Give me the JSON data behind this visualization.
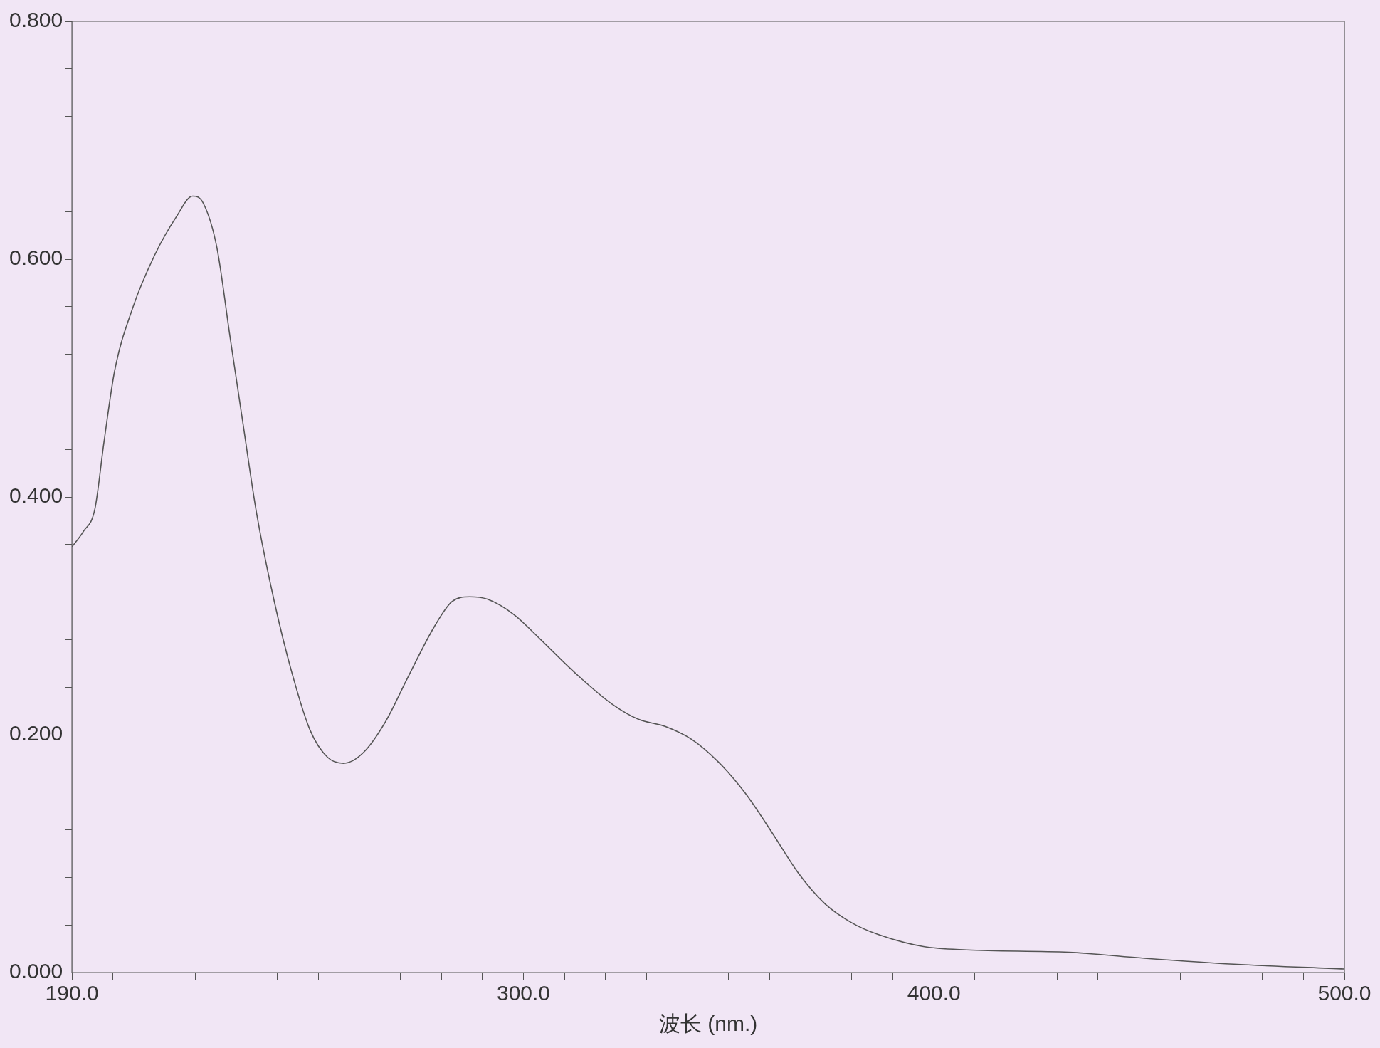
{
  "chart_data": {
    "type": "line",
    "xlabel": "波长 (nm.)",
    "x": [
      190,
      192.8,
      195.6,
      197.8,
      200.4,
      204.7,
      210.1,
      215.5,
      219.4,
      222,
      225.3,
      228.5,
      231.7,
      235,
      239.3,
      243.6,
      248,
      252.3,
      256.2,
      261,
      266.4,
      271.8,
      278.3,
      282.6,
      286.9,
      291.2,
      297.7,
      304.2,
      312.9,
      321.5,
      328,
      334.5,
      341,
      347.5,
      354,
      360.5,
      366.9,
      373.4,
      379.9,
      386.4,
      397.2,
      408,
      432.9,
      451.3,
      473,
      500
    ],
    "series": [
      {
        "color": "#555555",
        "values": [
          0.358,
          0.371,
          0.39,
          0.446,
          0.506,
          0.558,
          0.603,
          0.636,
          0.653,
          0.647,
          0.61,
          0.535,
          0.461,
          0.386,
          0.312,
          0.252,
          0.204,
          0.181,
          0.176,
          0.185,
          0.211,
          0.248,
          0.291,
          0.312,
          0.316,
          0.314,
          0.301,
          0.28,
          0.251,
          0.226,
          0.213,
          0.207,
          0.196,
          0.177,
          0.151,
          0.118,
          0.084,
          0.058,
          0.042,
          0.032,
          0.022,
          0.019,
          0.017,
          0.012,
          0.007,
          0.003
        ]
      }
    ],
    "xlim": [
      190,
      500
    ],
    "xticks": [
      {
        "value": 190,
        "label": "190.0"
      },
      {
        "value": 200,
        "label": null
      },
      {
        "value": 210,
        "label": null
      },
      {
        "value": 220,
        "label": null
      },
      {
        "value": 230,
        "label": null
      },
      {
        "value": 240,
        "label": null
      },
      {
        "value": 250,
        "label": null
      },
      {
        "value": 260,
        "label": null
      },
      {
        "value": 270,
        "label": null
      },
      {
        "value": 280,
        "label": null
      },
      {
        "value": 290,
        "label": null
      },
      {
        "value": 300,
        "label": "300.0"
      },
      {
        "value": 310,
        "label": null
      },
      {
        "value": 320,
        "label": null
      },
      {
        "value": 330,
        "label": null
      },
      {
        "value": 340,
        "label": null
      },
      {
        "value": 350,
        "label": null
      },
      {
        "value": 360,
        "label": null
      },
      {
        "value": 370,
        "label": null
      },
      {
        "value": 380,
        "label": null
      },
      {
        "value": 390,
        "label": null
      },
      {
        "value": 400,
        "label": "400.0"
      },
      {
        "value": 410,
        "label": null
      },
      {
        "value": 420,
        "label": null
      },
      {
        "value": 430,
        "label": null
      },
      {
        "value": 440,
        "label": null
      },
      {
        "value": 450,
        "label": null
      },
      {
        "value": 460,
        "label": null
      },
      {
        "value": 470,
        "label": null
      },
      {
        "value": 480,
        "label": null
      },
      {
        "value": 490,
        "label": null
      },
      {
        "value": 500,
        "label": "500.0"
      }
    ],
    "ylim": [
      0,
      0.8
    ],
    "yticks": [
      {
        "value": 0,
        "label": "0.000"
      },
      {
        "value": 0.04,
        "label": null
      },
      {
        "value": 0.08,
        "label": null
      },
      {
        "value": 0.12,
        "label": null
      },
      {
        "value": 0.16,
        "label": null
      },
      {
        "value": 0.2,
        "label": "0.200"
      },
      {
        "value": 0.24,
        "label": null
      },
      {
        "value": 0.28,
        "label": null
      },
      {
        "value": 0.32,
        "label": null
      },
      {
        "value": 0.36,
        "label": null
      },
      {
        "value": 0.4,
        "label": "0.400"
      },
      {
        "value": 0.44,
        "label": null
      },
      {
        "value": 0.48,
        "label": null
      },
      {
        "value": 0.52,
        "label": null
      },
      {
        "value": 0.56,
        "label": null
      },
      {
        "value": 0.6,
        "label": "0.600"
      },
      {
        "value": 0.64,
        "label": null
      },
      {
        "value": 0.68,
        "label": null
      },
      {
        "value": 0.72,
        "label": null
      },
      {
        "value": 0.76,
        "label": null
      },
      {
        "value": 0.8,
        "label": "0.800"
      }
    ],
    "grid": false,
    "legend": false,
    "marker": "none",
    "line_style": "solid"
  }
}
